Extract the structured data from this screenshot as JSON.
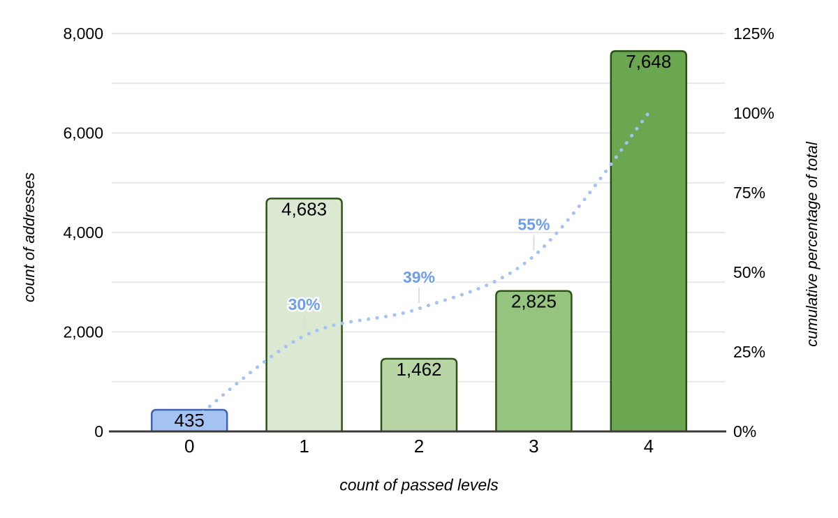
{
  "chart_data": {
    "type": "combo-bar-line",
    "title": "",
    "categories": [
      "0",
      "1",
      "2",
      "3",
      "4"
    ],
    "xlabel": "count of passed levels",
    "ylabel_left": "count of addresses",
    "ylabel_right": "cumulative percentage of total",
    "background": "#ffffff",
    "grid": {
      "show": true,
      "step": 1000,
      "color": "#e7e7e7"
    },
    "axis_line_color": "#3c3c3c",
    "leader_line_color": "#dcdcdc",
    "y_left": {
      "min": 0,
      "max": 8000,
      "label_step": 2000,
      "tick_labels": [
        "0",
        "2,000",
        "4,000",
        "6,000",
        "8,000"
      ]
    },
    "y_right": {
      "min": 0,
      "max": 125,
      "label_step": 25,
      "tick_labels": [
        "0%",
        "25%",
        "50%",
        "75%",
        "100%",
        "125%"
      ]
    },
    "series": [
      {
        "name": "count of addresses",
        "type": "bar",
        "values": [
          435,
          4683,
          1462,
          2825,
          7648
        ],
        "value_labels": [
          "435",
          "4,683",
          "1,462",
          "2,825",
          "7,648"
        ],
        "bar_fill_colors": [
          "#a4c2f4",
          "#dbe9d2",
          "#b7d5a5",
          "#94c47e",
          "#6ba750"
        ],
        "bar_border_colors": [
          "#3d64ad",
          "#2d5414",
          "#2d5414",
          "#2d5414",
          "#274e13"
        ],
        "value_label_color": "#000000"
      },
      {
        "name": "cumulative percentage of total",
        "type": "line",
        "style": "dotted-smooth",
        "values_pct": [
          2.6,
          30.0,
          38.6,
          55.1,
          100.0
        ],
        "point_labels": [
          "",
          "30%",
          "39%",
          "55%",
          ""
        ],
        "line_color": "#a4c2f4",
        "label_color": "#6d9eeb"
      }
    ]
  }
}
